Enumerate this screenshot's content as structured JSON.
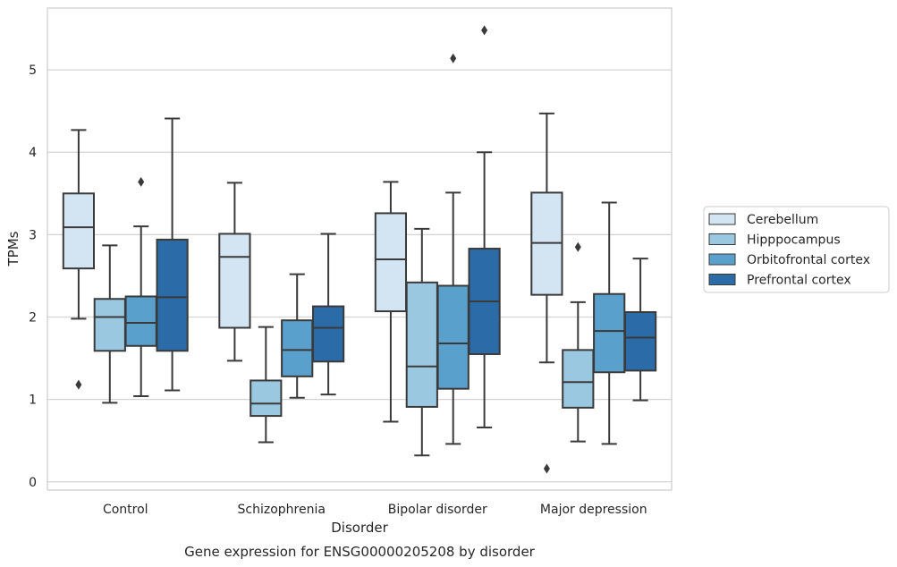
{
  "caption": "Gene expression for ENSG00000205208 by disorder",
  "chart_data": {
    "type": "box",
    "xlabel": "Disorder",
    "ylabel": "TPMs",
    "ylim": [
      -0.1,
      5.75
    ],
    "yticks": [
      0,
      1,
      2,
      3,
      4,
      5
    ],
    "grid": "horizontal",
    "legend_position": "right",
    "categories": [
      "Control",
      "Schizophrenia",
      "Bipolar disorder",
      "Major depression"
    ],
    "series": [
      {
        "name": "Cerebellum",
        "color": "#d3e4f3",
        "boxes": [
          {
            "whisker_low": 1.98,
            "q1": 2.59,
            "median": 3.09,
            "q3": 3.5,
            "whisker_high": 4.27,
            "outliers": [
              1.18
            ]
          },
          {
            "whisker_low": 1.47,
            "q1": 1.87,
            "median": 2.73,
            "q3": 3.01,
            "whisker_high": 3.63,
            "outliers": []
          },
          {
            "whisker_low": 0.73,
            "q1": 2.07,
            "median": 2.7,
            "q3": 3.26,
            "whisker_high": 3.64,
            "outliers": []
          },
          {
            "whisker_low": 1.45,
            "q1": 2.27,
            "median": 2.9,
            "q3": 3.51,
            "whisker_high": 4.47,
            "outliers": [
              0.16
            ]
          }
        ]
      },
      {
        "name": "Hipppocampus",
        "color": "#9ac8e0",
        "boxes": [
          {
            "whisker_low": 0.96,
            "q1": 1.59,
            "median": 2.0,
            "q3": 2.22,
            "whisker_high": 2.87,
            "outliers": []
          },
          {
            "whisker_low": 0.48,
            "q1": 0.8,
            "median": 0.95,
            "q3": 1.23,
            "whisker_high": 1.88,
            "outliers": []
          },
          {
            "whisker_low": 0.32,
            "q1": 0.91,
            "median": 1.4,
            "q3": 2.42,
            "whisker_high": 3.07,
            "outliers": []
          },
          {
            "whisker_low": 0.49,
            "q1": 0.9,
            "median": 1.21,
            "q3": 1.6,
            "whisker_high": 2.18,
            "outliers": [
              2.85
            ]
          }
        ]
      },
      {
        "name": "Orbitofrontal cortex",
        "color": "#5aa0cd",
        "boxes": [
          {
            "whisker_low": 1.04,
            "q1": 1.65,
            "median": 1.93,
            "q3": 2.25,
            "whisker_high": 3.1,
            "outliers": [
              3.64
            ]
          },
          {
            "whisker_low": 1.02,
            "q1": 1.28,
            "median": 1.6,
            "q3": 1.96,
            "whisker_high": 2.52,
            "outliers": []
          },
          {
            "whisker_low": 0.46,
            "q1": 1.13,
            "median": 1.68,
            "q3": 2.38,
            "whisker_high": 3.51,
            "outliers": [
              5.14
            ]
          },
          {
            "whisker_low": 0.46,
            "q1": 1.33,
            "median": 1.83,
            "q3": 2.28,
            "whisker_high": 3.39,
            "outliers": []
          }
        ]
      },
      {
        "name": "Prefrontal cortex",
        "color": "#2b6ba8",
        "boxes": [
          {
            "whisker_low": 1.11,
            "q1": 1.59,
            "median": 2.24,
            "q3": 2.94,
            "whisker_high": 4.41,
            "outliers": []
          },
          {
            "whisker_low": 1.06,
            "q1": 1.46,
            "median": 1.87,
            "q3": 2.13,
            "whisker_high": 3.01,
            "outliers": []
          },
          {
            "whisker_low": 0.66,
            "q1": 1.55,
            "median": 2.19,
            "q3": 2.83,
            "whisker_high": 4.0,
            "outliers": [
              5.48
            ]
          },
          {
            "whisker_low": 0.99,
            "q1": 1.35,
            "median": 1.75,
            "q3": 2.06,
            "whisker_high": 2.71,
            "outliers": []
          }
        ]
      }
    ]
  }
}
